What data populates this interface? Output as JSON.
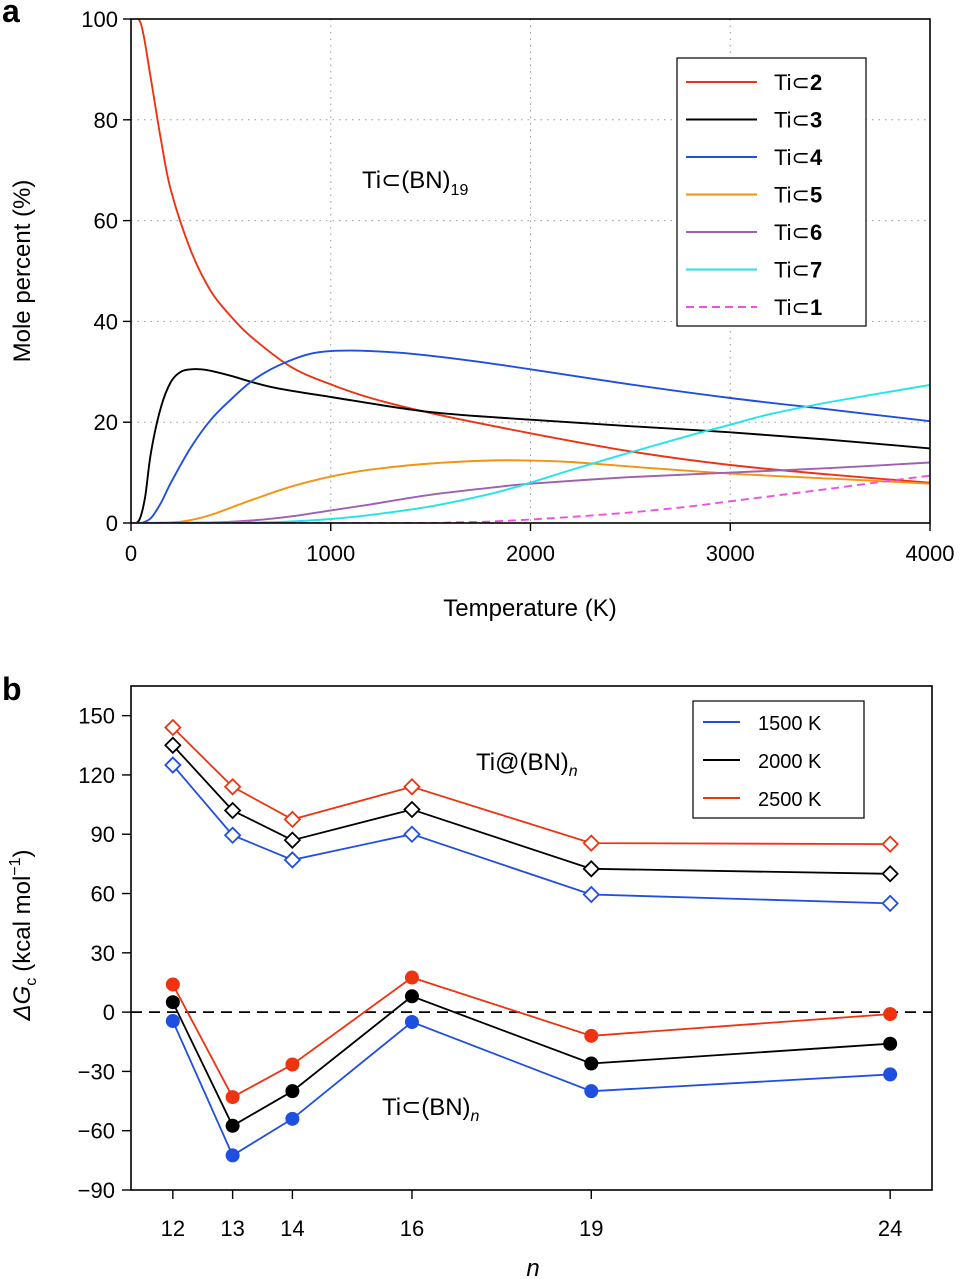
{
  "chart_data": [
    {
      "panel_label": "a",
      "type": "line",
      "xlabel": "Temperature (K)",
      "ylabel": "Mole percent (%)",
      "xlim": [
        0,
        4000
      ],
      "ylim": [
        0,
        100
      ],
      "xticks": [
        "0",
        "1000",
        "2000",
        "3000",
        "4000"
      ],
      "yticks": [
        "0",
        "20",
        "40",
        "60",
        "80",
        "100"
      ],
      "grid": "dotted",
      "annotation": {
        "main": "Ti⊂(BN)",
        "sub": "19"
      },
      "legend_position": "top-right",
      "legend_prefix": "Ti⊂",
      "series": [
        {
          "name": "2",
          "color": "#ee3311",
          "dash": false,
          "x": [
            0,
            50,
            100,
            150,
            200,
            300,
            400,
            500,
            600,
            800,
            1000,
            1200,
            1500,
            2000,
            2500,
            3000,
            3500,
            4000
          ],
          "y": [
            100,
            99,
            88,
            76,
            66,
            54,
            46,
            41,
            37,
            31,
            27.5,
            24.8,
            21.8,
            17.8,
            14.2,
            11.5,
            9.6,
            8.0
          ]
        },
        {
          "name": "3",
          "color": "#000000",
          "dash": false,
          "x": [
            0,
            40,
            70,
            100,
            150,
            200,
            250,
            300,
            350,
            400,
            500,
            700,
            1000,
            1500,
            2000,
            2500,
            3000,
            3500,
            4000
          ],
          "y": [
            0,
            0.5,
            5,
            14,
            23,
            28,
            30,
            30.5,
            30.5,
            30.2,
            29.2,
            27,
            25,
            22,
            20.5,
            19.2,
            18,
            16.5,
            14.8
          ]
        },
        {
          "name": "4",
          "color": "#1f4fe0",
          "dash": false,
          "x": [
            0,
            50,
            100,
            150,
            200,
            300,
            400,
            500,
            600,
            700,
            800,
            900,
            1000,
            1100,
            1200,
            1400,
            1700,
            2000,
            2500,
            3000,
            3500,
            4000
          ],
          "y": [
            0,
            0,
            1,
            4,
            8,
            15,
            20.5,
            24.5,
            28,
            30.5,
            32.3,
            33.6,
            34.1,
            34.2,
            34.1,
            33.6,
            32.2,
            30.5,
            27.5,
            24.8,
            22.5,
            20.2
          ]
        },
        {
          "name": "5",
          "color": "#f5920f",
          "dash": false,
          "x": [
            0,
            200,
            300,
            400,
            600,
            800,
            1000,
            1200,
            1500,
            1800,
            2000,
            2200,
            2500,
            3000,
            3500,
            4000
          ],
          "y": [
            0,
            0.1,
            0.6,
            1.6,
            4.5,
            7.2,
            9.2,
            10.6,
            11.8,
            12.4,
            12.4,
            12.1,
            11.2,
            9.8,
            8.8,
            7.8
          ]
        },
        {
          "name": "6",
          "color": "#a060b0",
          "dash": false,
          "x": [
            0,
            400,
            600,
            800,
            1000,
            1200,
            1500,
            1800,
            2000,
            2500,
            3000,
            3500,
            4000
          ],
          "y": [
            0,
            0.1,
            0.5,
            1.3,
            2.5,
            3.7,
            5.6,
            7.0,
            7.8,
            9.1,
            10.0,
            10.9,
            12.0
          ]
        },
        {
          "name": "7",
          "color": "#22e4e8",
          "dash": false,
          "x": [
            0,
            600,
            800,
            1000,
            1200,
            1500,
            1800,
            2000,
            2200,
            2500,
            2800,
            3000,
            3200,
            3500,
            4000
          ],
          "y": [
            0,
            0.1,
            0.3,
            0.8,
            1.6,
            3.3,
            5.8,
            8.0,
            10.5,
            14.0,
            17.4,
            19.5,
            21.6,
            24.0,
            27.4
          ]
        },
        {
          "name": "1",
          "color": "#f050e0",
          "dash": true,
          "x": [
            0,
            1400,
            1600,
            1800,
            2000,
            2200,
            2500,
            2800,
            3000,
            3200,
            3500,
            3800,
            4000
          ],
          "y": [
            0,
            0,
            0.1,
            0.3,
            0.7,
            1.2,
            2.1,
            3.3,
            4.3,
            5.3,
            6.8,
            8.4,
            9.4
          ]
        }
      ]
    },
    {
      "panel_label": "b",
      "type": "line",
      "xlabel": "n",
      "ylabel": "ΔG",
      "ylabel_sub": "c",
      "ylabel_units": "(kcal mol",
      "ylabel_sup": "−1",
      "ylabel_close": ")",
      "x": [
        12,
        13,
        14,
        16,
        19,
        24
      ],
      "xticks": [
        "12",
        "13",
        "14",
        "16",
        "19",
        "24"
      ],
      "xlim": [
        11.3,
        24.7
      ],
      "ylim": [
        -90,
        165
      ],
      "yticks": [
        "−90",
        "−60",
        "−30",
        "0",
        "30",
        "60",
        "90",
        "120",
        "150"
      ],
      "zero_line": "dashed",
      "legend_position": "top-right",
      "legend": [
        "1500 K",
        "2000 K",
        "2500 K"
      ],
      "annotations": [
        {
          "main": "Ti@(BN)",
          "sub": "n"
        },
        {
          "main": "Ti⊂(BN)",
          "sub": "n"
        }
      ],
      "series": [
        {
          "name": "Ti@(BN)n 1500 K",
          "color": "#1f4fe0",
          "marker": "open-diamond",
          "values": [
            125,
            89.5,
            77,
            90,
            59.5,
            55
          ]
        },
        {
          "name": "Ti@(BN)n 2000 K",
          "color": "#000000",
          "marker": "open-diamond",
          "values": [
            135,
            102,
            87,
            102.5,
            72.5,
            70
          ]
        },
        {
          "name": "Ti@(BN)n 2500 K",
          "color": "#ee3311",
          "marker": "open-diamond",
          "values": [
            144,
            114,
            97.5,
            114,
            85.5,
            85
          ]
        },
        {
          "name": "Ti⊂(BN)n 1500 K",
          "color": "#1f4fe0",
          "marker": "filled-circle",
          "values": [
            -4.5,
            -72.5,
            -54,
            -5,
            -40,
            -31.5
          ]
        },
        {
          "name": "Ti⊂(BN)n 2000 K",
          "color": "#000000",
          "marker": "filled-circle",
          "values": [
            5,
            -57.5,
            -40,
            8,
            -26,
            -16
          ]
        },
        {
          "name": "Ti⊂(BN)n 2500 K",
          "color": "#ee3311",
          "marker": "filled-circle",
          "values": [
            14,
            -43,
            -26.5,
            17.5,
            -12,
            -1
          ]
        }
      ]
    }
  ]
}
